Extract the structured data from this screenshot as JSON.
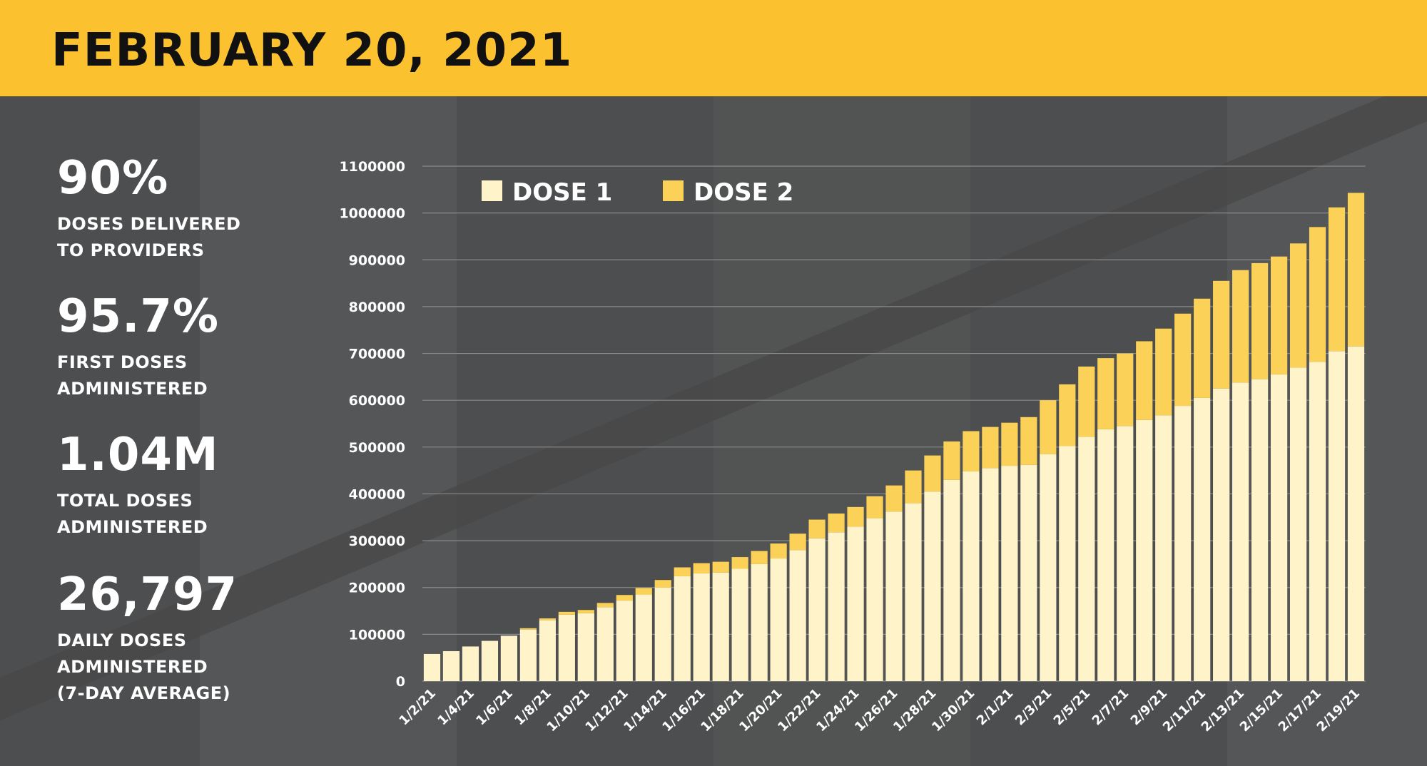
{
  "header": {
    "title": "FEBRUARY 20, 2021"
  },
  "stats": [
    {
      "value": "90%",
      "label": "DOSES DELIVERED\nTO PROVIDERS"
    },
    {
      "value": "95.7%",
      "label": "FIRST DOSES\nADMINISTERED"
    },
    {
      "value": "1.04M",
      "label": "TOTAL DOSES\nADMINISTERED"
    },
    {
      "value": "26,797",
      "label": "DAILY DOSES\nADMINISTERED\n(7-DAY AVERAGE)"
    }
  ],
  "colors": {
    "header": "#fbc12e",
    "background": "#4d4e4f",
    "dose1": "#fff3c9",
    "dose2": "#fcd157",
    "grid": "#8a8a8a",
    "text": "#ffffff"
  },
  "chart_data": {
    "type": "bar",
    "stacked": true,
    "title": "",
    "xlabel": "",
    "ylabel": "",
    "ylim": [
      0,
      1100000
    ],
    "yticks": [
      0,
      100000,
      200000,
      300000,
      400000,
      500000,
      600000,
      700000,
      800000,
      900000,
      1000000,
      1100000
    ],
    "ytick_labels": [
      "0",
      "100000",
      "200000",
      "300000",
      "400000",
      "500000",
      "600000",
      "700000",
      "800000",
      "900000",
      "1000000",
      "1100000"
    ],
    "grid": true,
    "legend": "top-left",
    "categories": [
      "1/2/21",
      "1/3/21",
      "1/4/21",
      "1/5/21",
      "1/6/21",
      "1/7/21",
      "1/8/21",
      "1/9/21",
      "1/10/21",
      "1/11/21",
      "1/12/21",
      "1/13/21",
      "1/14/21",
      "1/15/21",
      "1/16/21",
      "1/17/21",
      "1/18/21",
      "1/19/21",
      "1/20/21",
      "1/21/21",
      "1/22/21",
      "1/23/21",
      "1/24/21",
      "1/25/21",
      "1/26/21",
      "1/27/21",
      "1/28/21",
      "1/29/21",
      "1/30/21",
      "1/31/21",
      "2/1/21",
      "2/2/21",
      "2/3/21",
      "2/4/21",
      "2/5/21",
      "2/6/21",
      "2/7/21",
      "2/8/21",
      "2/9/21",
      "2/10/21",
      "2/11/21",
      "2/12/21",
      "2/13/21",
      "2/14/21",
      "2/15/21",
      "2/16/21",
      "2/17/21",
      "2/18/21",
      "2/19/21"
    ],
    "xtick_labels": [
      "1/2/21",
      "1/4/21",
      "1/6/21",
      "1/8/21",
      "1/10/21",
      "1/12/21",
      "1/14/21",
      "1/16/21",
      "1/18/21",
      "1/20/21",
      "1/22/21",
      "1/24/21",
      "1/26/21",
      "1/28/21",
      "1/30/21",
      "2/1/21",
      "2/3/21",
      "2/5/21",
      "2/7/21",
      "2/9/21",
      "2/11/21",
      "2/13/21",
      "2/15/21",
      "2/17/21",
      "2/19/21"
    ],
    "series": [
      {
        "name": "DOSE 1",
        "values": [
          58000,
          64000,
          74000,
          86000,
          97000,
          110000,
          130000,
          142000,
          145000,
          158000,
          172000,
          185000,
          200000,
          224000,
          230000,
          232000,
          240000,
          250000,
          262000,
          280000,
          305000,
          318000,
          330000,
          348000,
          362000,
          380000,
          405000,
          430000,
          448000,
          455000,
          460000,
          462000,
          485000,
          502000,
          522000,
          538000,
          545000,
          558000,
          568000,
          588000,
          605000,
          625000,
          638000,
          645000,
          655000,
          670000,
          682000,
          705000,
          715000
        ]
      },
      {
        "name": "DOSE 2",
        "values": [
          0,
          0,
          0,
          0,
          0,
          3000,
          4000,
          6000,
          7000,
          9000,
          12000,
          14000,
          16000,
          19000,
          22000,
          23000,
          25000,
          28000,
          32000,
          35000,
          40000,
          40000,
          42000,
          47000,
          56000,
          70000,
          77000,
          82000,
          86000,
          88000,
          92000,
          102000,
          115000,
          132000,
          150000,
          152000,
          155000,
          168000,
          185000,
          197000,
          212000,
          230000,
          240000,
          248000,
          252000,
          265000,
          288000,
          307000,
          328000
        ]
      }
    ]
  }
}
